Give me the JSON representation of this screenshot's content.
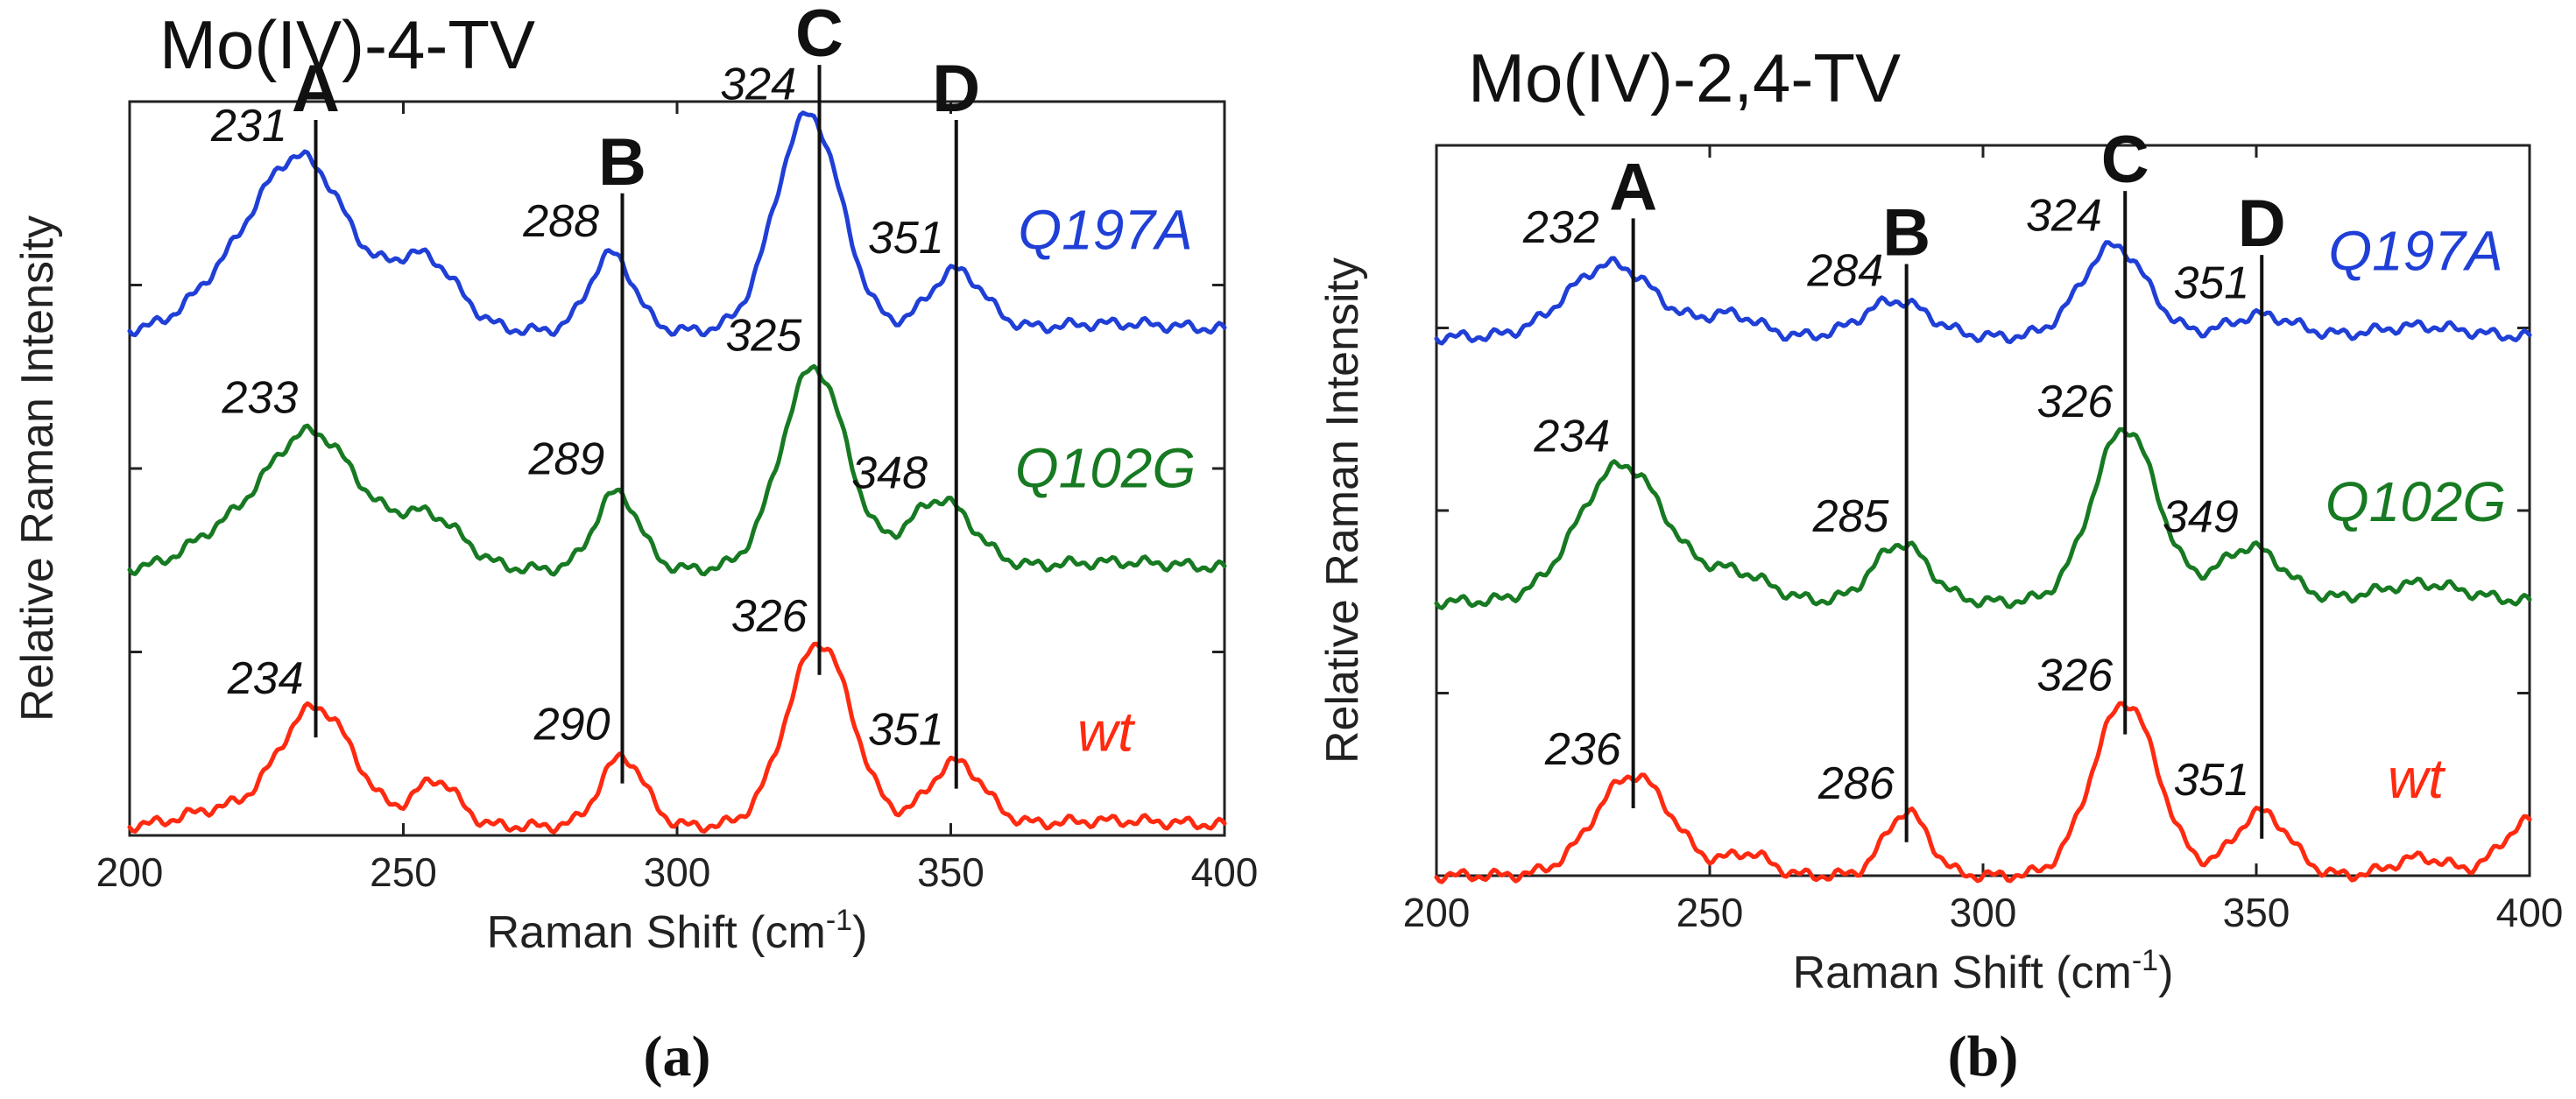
{
  "chart_data": [
    {
      "panel": "(a)",
      "type": "line",
      "title": "Mo(IV)-4-TV",
      "xlabel": "Raman Shift (cm",
      "xlabel_sup": "-1",
      "xlabel_close": ")",
      "ylabel": "Relative Raman Intensity",
      "xlim": [
        200,
        400
      ],
      "ylim": [
        0,
        4
      ],
      "xticks": [
        200,
        250,
        300,
        350,
        400
      ],
      "yticks": [
        1,
        2,
        3
      ],
      "grid": false,
      "peak_lines": [
        {
          "name": "A",
          "x": 234,
          "top": 3.9
        },
        {
          "name": "B",
          "x": 290,
          "top": 3.5
        },
        {
          "name": "C",
          "x": 326,
          "top": 4.2
        },
        {
          "name": "D",
          "x": 351,
          "top": 3.9
        }
      ],
      "series": [
        {
          "name": "Q197A",
          "color": "#1f3fd6",
          "baseline": 2.75,
          "peaks": [
            {
              "x": 231,
              "h": 0.95,
              "w": 9
            },
            {
              "x": 254,
              "h": 0.38,
              "w": 6
            },
            {
              "x": 288,
              "h": 0.42,
              "w": 4
            },
            {
              "x": 324,
              "h": 1.18,
              "w": 6
            },
            {
              "x": 351,
              "h": 0.33,
              "w": 5
            },
            {
              "x": 215,
              "h": 0.12,
              "w": 6
            },
            {
              "x": 380,
              "h": 0.04,
              "w": 12
            }
          ],
          "labels": [
            {
              "text": "231",
              "x": 231
            },
            {
              "text": "288",
              "x": 288
            },
            {
              "text": "324",
              "x": 324
            },
            {
              "text": "351",
              "x": 351
            }
          ]
        },
        {
          "name": "Q102G",
          "color": "#177a22",
          "baseline": 1.45,
          "peaks": [
            {
              "x": 233,
              "h": 0.75,
              "w": 9
            },
            {
              "x": 255,
              "h": 0.27,
              "w": 6
            },
            {
              "x": 289,
              "h": 0.42,
              "w": 4
            },
            {
              "x": 325,
              "h": 1.1,
              "w": 6
            },
            {
              "x": 348,
              "h": 0.38,
              "w": 6
            },
            {
              "x": 215,
              "h": 0.12,
              "w": 6
            },
            {
              "x": 380,
              "h": 0.04,
              "w": 12
            }
          ],
          "labels": [
            {
              "text": "233",
              "x": 233
            },
            {
              "text": "289",
              "x": 289
            },
            {
              "text": "325",
              "x": 325
            },
            {
              "text": "348",
              "x": 348
            }
          ]
        },
        {
          "name": "wt",
          "color": "#ff2a10",
          "baseline": 0.05,
          "peaks": [
            {
              "x": 234,
              "h": 0.65,
              "w": 7
            },
            {
              "x": 256,
              "h": 0.25,
              "w": 4
            },
            {
              "x": 290,
              "h": 0.38,
              "w": 4
            },
            {
              "x": 326,
              "h": 1.0,
              "w": 6
            },
            {
              "x": 351,
              "h": 0.35,
              "w": 5
            },
            {
              "x": 215,
              "h": 0.08,
              "w": 6
            },
            {
              "x": 380,
              "h": 0.03,
              "w": 12
            }
          ],
          "labels": [
            {
              "text": "234",
              "x": 234
            },
            {
              "text": "290",
              "x": 290
            },
            {
              "text": "326",
              "x": 326
            },
            {
              "text": "351",
              "x": 351
            }
          ]
        }
      ]
    },
    {
      "panel": "(b)",
      "type": "line",
      "title": "Mo(IV)-2,4-TV",
      "xlabel": "Raman Shift (cm",
      "xlabel_sup": "-1",
      "xlabel_close": ")",
      "ylabel": "Relative Raman Intensity",
      "xlim": [
        200,
        400
      ],
      "ylim": [
        0,
        4
      ],
      "xticks": [
        200,
        250,
        300,
        350,
        400
      ],
      "yticks": [
        1,
        2,
        3
      ],
      "grid": false,
      "peak_lines": [
        {
          "name": "A",
          "x": 236,
          "top": 3.6
        },
        {
          "name": "B",
          "x": 286,
          "top": 3.35
        },
        {
          "name": "C",
          "x": 326,
          "top": 3.75
        },
        {
          "name": "D",
          "x": 351,
          "top": 3.4
        }
      ],
      "series": [
        {
          "name": "Q197A",
          "color": "#1f3fd6",
          "baseline": 2.95,
          "peaks": [
            {
              "x": 232,
              "h": 0.4,
              "w": 8
            },
            {
              "x": 254,
              "h": 0.12,
              "w": 5
            },
            {
              "x": 284,
              "h": 0.2,
              "w": 6
            },
            {
              "x": 324,
              "h": 0.5,
              "w": 6
            },
            {
              "x": 351,
              "h": 0.12,
              "w": 6
            },
            {
              "x": 380,
              "h": 0.06,
              "w": 8
            }
          ],
          "labels": [
            {
              "text": "232",
              "x": 232
            },
            {
              "text": "284",
              "x": 284
            },
            {
              "text": "324",
              "x": 324
            },
            {
              "text": "351",
              "x": 351
            }
          ]
        },
        {
          "name": "Q102G",
          "color": "#177a22",
          "baseline": 1.5,
          "peaks": [
            {
              "x": 234,
              "h": 0.75,
              "w": 8
            },
            {
              "x": 255,
              "h": 0.15,
              "w": 6
            },
            {
              "x": 285,
              "h": 0.32,
              "w": 5
            },
            {
              "x": 326,
              "h": 0.95,
              "w": 6
            },
            {
              "x": 349,
              "h": 0.3,
              "w": 6
            },
            {
              "x": 380,
              "h": 0.1,
              "w": 8
            }
          ],
          "labels": [
            {
              "text": "234",
              "x": 234
            },
            {
              "text": "285",
              "x": 285
            },
            {
              "text": "326",
              "x": 326
            },
            {
              "text": "349",
              "x": 349
            }
          ]
        },
        {
          "name": "wt",
          "color": "#ff2a10",
          "baseline": 0.0,
          "peaks": [
            {
              "x": 236,
              "h": 0.55,
              "w": 7
            },
            {
              "x": 257,
              "h": 0.12,
              "w": 4
            },
            {
              "x": 286,
              "h": 0.35,
              "w": 4
            },
            {
              "x": 326,
              "h": 0.95,
              "w": 6
            },
            {
              "x": 351,
              "h": 0.35,
              "w": 5
            },
            {
              "x": 380,
              "h": 0.1,
              "w": 5
            },
            {
              "x": 400,
              "h": 0.3,
              "w": 5
            }
          ],
          "labels": [
            {
              "text": "236",
              "x": 236
            },
            {
              "text": "286",
              "x": 286
            },
            {
              "text": "326",
              "x": 326
            },
            {
              "text": "351",
              "x": 351
            }
          ]
        }
      ]
    }
  ]
}
